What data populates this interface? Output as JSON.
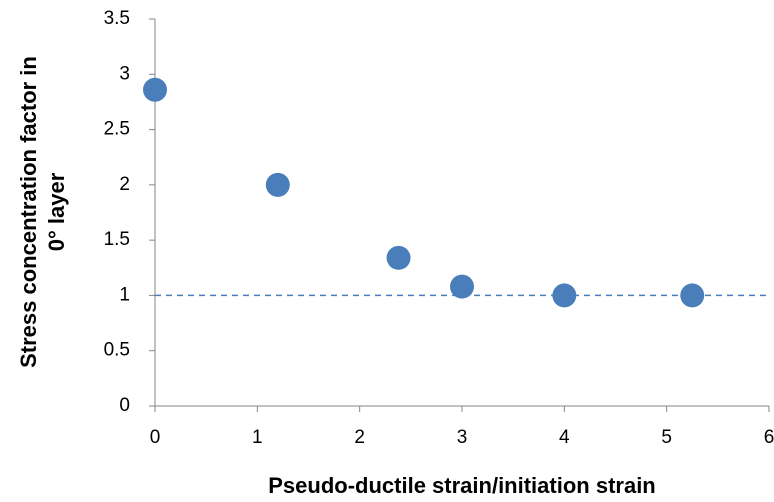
{
  "chart_data": {
    "type": "scatter",
    "xlabel": "Pseudo-ductile strain/initiation strain",
    "ylabel": [
      "Stress concentration factor in",
      "0° layer"
    ],
    "series": [
      {
        "name": "Stress concentration factor",
        "color": "#4a7ebb",
        "x": [
          0,
          1.2,
          2.38,
          3,
          4,
          5.25
        ],
        "values": [
          2.86,
          2.0,
          1.34,
          1.08,
          1.0,
          1.0
        ]
      }
    ],
    "reference_line": {
      "y": 1,
      "color": "#4a7ebb",
      "style": "dashed"
    },
    "xlim": [
      0,
      6
    ],
    "xticks": [
      0,
      1,
      2,
      3,
      4,
      5,
      6
    ],
    "ylim": [
      0,
      3.5
    ],
    "yticks": [
      0,
      0.5,
      1,
      1.5,
      2,
      2.5,
      3,
      3.5
    ],
    "grid": false
  }
}
